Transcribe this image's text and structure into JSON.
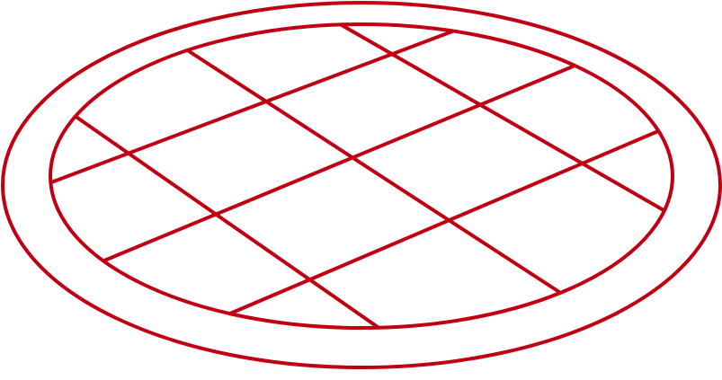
{
  "illustration": {
    "icon": "lattice-pie-outline-icon",
    "stroke_color": "#c00012",
    "background_color": "#ffffff"
  }
}
